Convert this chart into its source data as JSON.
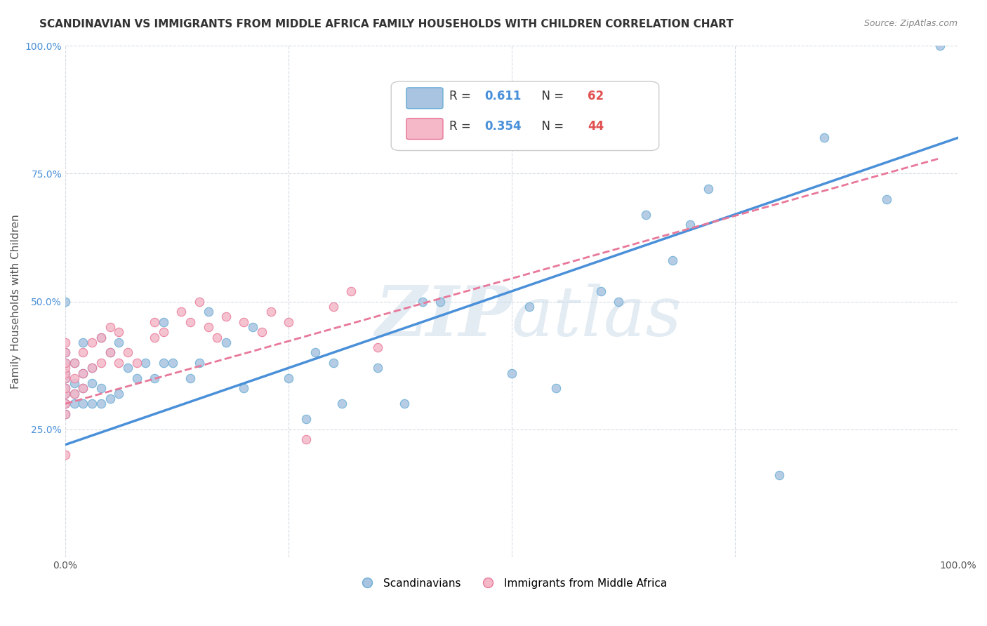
{
  "title": "SCANDINAVIAN VS IMMIGRANTS FROM MIDDLE AFRICA FAMILY HOUSEHOLDS WITH CHILDREN CORRELATION CHART",
  "source": "Source: ZipAtlas.com",
  "xlabel": "",
  "ylabel": "Family Households with Children",
  "xlim": [
    0,
    1
  ],
  "ylim": [
    0,
    1
  ],
  "xticks": [
    0.0,
    0.25,
    0.5,
    0.75,
    1.0
  ],
  "yticks": [
    0.0,
    0.25,
    0.5,
    0.75,
    1.0
  ],
  "xticklabels": [
    "0.0%",
    "",
    "",
    "",
    "100.0%"
  ],
  "yticklabels": [
    "",
    "25.0%",
    "50.0%",
    "75.0%",
    "100.0%"
  ],
  "legend_labels": [
    "Scandinavians",
    "Immigrants from Middle Africa"
  ],
  "legend_r": [
    "0.611",
    "0.354"
  ],
  "legend_n": [
    "62",
    "44"
  ],
  "scatter_blue": {
    "x": [
      0.0,
      0.0,
      0.0,
      0.0,
      0.0,
      0.0,
      0.0,
      0.0,
      0.0,
      0.01,
      0.01,
      0.01,
      0.01,
      0.02,
      0.02,
      0.02,
      0.02,
      0.03,
      0.03,
      0.03,
      0.04,
      0.04,
      0.04,
      0.05,
      0.05,
      0.06,
      0.06,
      0.07,
      0.08,
      0.09,
      0.1,
      0.11,
      0.11,
      0.12,
      0.14,
      0.15,
      0.16,
      0.18,
      0.2,
      0.21,
      0.25,
      0.27,
      0.28,
      0.3,
      0.31,
      0.35,
      0.38,
      0.4,
      0.42,
      0.5,
      0.52,
      0.55,
      0.6,
      0.62,
      0.65,
      0.68,
      0.7,
      0.72,
      0.8,
      0.85,
      0.92,
      0.98
    ],
    "y": [
      0.28,
      0.3,
      0.32,
      0.33,
      0.35,
      0.36,
      0.38,
      0.4,
      0.5,
      0.3,
      0.32,
      0.34,
      0.38,
      0.3,
      0.33,
      0.36,
      0.42,
      0.3,
      0.34,
      0.37,
      0.3,
      0.33,
      0.43,
      0.31,
      0.4,
      0.32,
      0.42,
      0.37,
      0.35,
      0.38,
      0.35,
      0.38,
      0.46,
      0.38,
      0.35,
      0.38,
      0.48,
      0.42,
      0.33,
      0.45,
      0.35,
      0.27,
      0.4,
      0.38,
      0.3,
      0.37,
      0.3,
      0.5,
      0.5,
      0.36,
      0.49,
      0.33,
      0.52,
      0.5,
      0.67,
      0.58,
      0.65,
      0.72,
      0.16,
      0.82,
      0.7,
      1.0
    ],
    "color": "#a8c4e0",
    "edgecolor": "#6aaed6",
    "size": 80
  },
  "scatter_pink": {
    "x": [
      0.0,
      0.0,
      0.0,
      0.0,
      0.0,
      0.0,
      0.0,
      0.0,
      0.0,
      0.0,
      0.0,
      0.01,
      0.01,
      0.01,
      0.02,
      0.02,
      0.02,
      0.03,
      0.03,
      0.04,
      0.04,
      0.05,
      0.05,
      0.06,
      0.06,
      0.07,
      0.08,
      0.1,
      0.1,
      0.11,
      0.13,
      0.14,
      0.15,
      0.16,
      0.17,
      0.18,
      0.2,
      0.22,
      0.23,
      0.25,
      0.27,
      0.3,
      0.32,
      0.35
    ],
    "y": [
      0.2,
      0.28,
      0.3,
      0.32,
      0.33,
      0.35,
      0.36,
      0.37,
      0.38,
      0.4,
      0.42,
      0.32,
      0.35,
      0.38,
      0.33,
      0.36,
      0.4,
      0.37,
      0.42,
      0.38,
      0.43,
      0.4,
      0.45,
      0.38,
      0.44,
      0.4,
      0.38,
      0.43,
      0.46,
      0.44,
      0.48,
      0.46,
      0.5,
      0.45,
      0.43,
      0.47,
      0.46,
      0.44,
      0.48,
      0.46,
      0.23,
      0.49,
      0.52,
      0.41
    ],
    "color": "#f4b8c8",
    "edgecolor": "#e87899",
    "size": 80
  },
  "line_blue": {
    "x0": 0.0,
    "x1": 1.0,
    "y0": 0.22,
    "y1": 0.82,
    "color": "#4a90d9",
    "linewidth": 2.5
  },
  "line_pink": {
    "x0": 0.0,
    "x1": 0.98,
    "y0": 0.3,
    "y1": 0.78,
    "color": "#e87899",
    "linewidth": 2.0,
    "linestyle": "--"
  },
  "watermark": "ZIPAtlas",
  "watermark_color": "#c8d8e8",
  "background_color": "#ffffff",
  "grid_color": "#d0d8e0",
  "title_fontsize": 11,
  "axis_label_fontsize": 11,
  "tick_fontsize": 10,
  "legend_fontsize": 12,
  "r_color": "#4a90d9",
  "n_color": "#e05050"
}
